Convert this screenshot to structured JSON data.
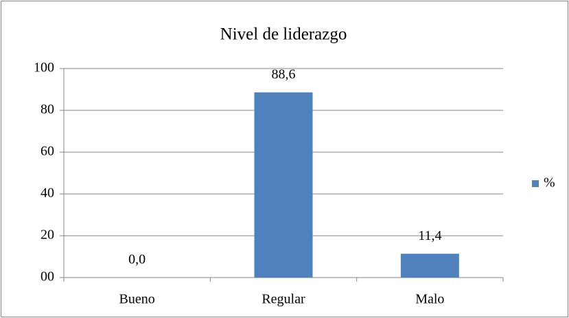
{
  "chart_data": {
    "type": "bar",
    "title": "Nivel de liderazgo",
    "categories": [
      "Bueno",
      "Regular",
      "Malo"
    ],
    "series": [
      {
        "name": "%",
        "color": "#4f81bd",
        "values": [
          0,
          88.6,
          11.4
        ],
        "value_labels": [
          "0,0",
          "88,6",
          "11,4"
        ]
      }
    ],
    "ylim": [
      0,
      100
    ],
    "yticks": [
      {
        "value": 0,
        "label": "00"
      },
      20,
      40,
      60,
      80,
      100
    ],
    "grid": true,
    "legend": "right"
  }
}
